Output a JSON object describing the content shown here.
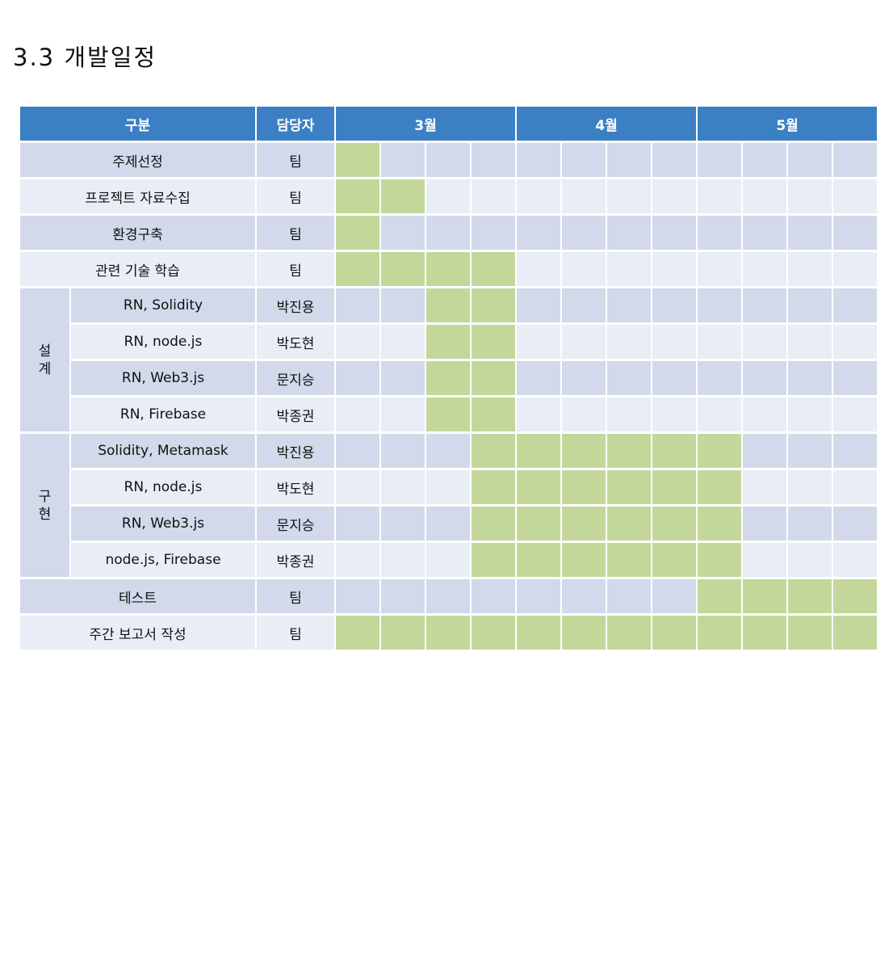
{
  "heading": "3.3 개발일정",
  "columns": {
    "category": "구분",
    "owner": "담당자",
    "months": [
      "3월",
      "4월",
      "5월"
    ]
  },
  "rows": [
    {
      "group": null,
      "task": "주제선정",
      "owner": "팀",
      "weeks": [
        1,
        0,
        0,
        0,
        0,
        0,
        0,
        0,
        0,
        0,
        0,
        0
      ]
    },
    {
      "group": null,
      "task": "프로젝트 자료수집",
      "owner": "팀",
      "weeks": [
        1,
        1,
        0,
        0,
        0,
        0,
        0,
        0,
        0,
        0,
        0,
        0
      ]
    },
    {
      "group": null,
      "task": "환경구축",
      "owner": "팀",
      "weeks": [
        1,
        0,
        0,
        0,
        0,
        0,
        0,
        0,
        0,
        0,
        0,
        0
      ]
    },
    {
      "group": null,
      "task": "관련 기술 학습",
      "owner": "팀",
      "weeks": [
        1,
        1,
        1,
        1,
        0,
        0,
        0,
        0,
        0,
        0,
        0,
        0
      ]
    },
    {
      "group": "설계",
      "task": "RN, Solidity",
      "owner": "박진용",
      "weeks": [
        0,
        0,
        1,
        1,
        0,
        0,
        0,
        0,
        0,
        0,
        0,
        0
      ]
    },
    {
      "group": "설계",
      "task": "RN, node.js",
      "owner": "박도현",
      "weeks": [
        0,
        0,
        1,
        1,
        0,
        0,
        0,
        0,
        0,
        0,
        0,
        0
      ]
    },
    {
      "group": "설계",
      "task": "RN, Web3.js",
      "owner": "문지승",
      "weeks": [
        0,
        0,
        1,
        1,
        0,
        0,
        0,
        0,
        0,
        0,
        0,
        0
      ]
    },
    {
      "group": "설계",
      "task": "RN, Firebase",
      "owner": "박종권",
      "weeks": [
        0,
        0,
        1,
        1,
        0,
        0,
        0,
        0,
        0,
        0,
        0,
        0
      ]
    },
    {
      "group": "구현",
      "task": "Solidity, Metamask",
      "owner": "박진용",
      "weeks": [
        0,
        0,
        0,
        1,
        1,
        1,
        1,
        1,
        1,
        0,
        0,
        0
      ]
    },
    {
      "group": "구현",
      "task": "RN, node.js",
      "owner": "박도현",
      "weeks": [
        0,
        0,
        0,
        1,
        1,
        1,
        1,
        1,
        1,
        0,
        0,
        0
      ]
    },
    {
      "group": "구현",
      "task": "RN, Web3.js",
      "owner": "문지승",
      "weeks": [
        0,
        0,
        0,
        1,
        1,
        1,
        1,
        1,
        1,
        0,
        0,
        0
      ]
    },
    {
      "group": "구현",
      "task": "node.js, Firebase",
      "owner": "박종권",
      "weeks": [
        0,
        0,
        0,
        1,
        1,
        1,
        1,
        1,
        1,
        0,
        0,
        0
      ]
    },
    {
      "group": null,
      "task": "테스트",
      "owner": "팀",
      "weeks": [
        0,
        0,
        0,
        0,
        0,
        0,
        0,
        0,
        1,
        1,
        1,
        1
      ]
    },
    {
      "group": null,
      "task": "주간 보고서 작성",
      "owner": "팀",
      "weeks": [
        1,
        1,
        1,
        1,
        1,
        1,
        1,
        1,
        1,
        1,
        1,
        1
      ]
    }
  ],
  "colors": {
    "header": "#3b80c4",
    "row_dark": "#d1d9ea",
    "row_light": "#e8edf6",
    "active": "#c3d79b"
  }
}
